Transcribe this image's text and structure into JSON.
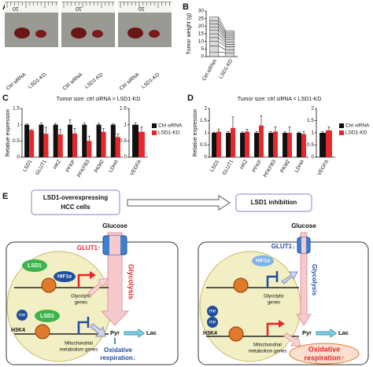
{
  "panel_labels": [
    "A",
    "B",
    "C",
    "D",
    "E"
  ],
  "photo_panel": {
    "photos": [
      {
        "ruler": "10",
        "labels": [
          "Ctrl siRNA",
          "LSD1-KD"
        ]
      },
      {
        "ruler": "10",
        "labels": [
          "Ctrl siRNA",
          "LSD1-KD"
        ]
      },
      {
        "ruler": "10",
        "labels": [
          "Ctrl siRNA",
          "LSD1-KD"
        ]
      }
    ]
  },
  "chart_data": [
    {
      "type": "stacked_bar",
      "categories": [
        "Ctrl siRNA",
        "LSD1-KD"
      ],
      "ylabel": "Tumor weight (g)",
      "ylim": [
        0,
        30
      ],
      "yticks": [
        0,
        5,
        10,
        15,
        20,
        25,
        30
      ],
      "color": "#d9d9d9",
      "series": [
        {
          "values": [
            3,
            2.5
          ]
        },
        {
          "values": [
            4,
            2
          ]
        },
        {
          "values": [
            3,
            2
          ]
        },
        {
          "values": [
            2.5,
            1.5
          ]
        },
        {
          "values": [
            2.5,
            1.5
          ]
        },
        {
          "values": [
            2.5,
            1.5
          ]
        },
        {
          "values": [
            2,
            1.5
          ]
        },
        {
          "values": [
            2,
            1.5
          ]
        },
        {
          "values": [
            2,
            1.5
          ]
        },
        {
          "values": [
            2.5,
            1.5
          ]
        }
      ]
    },
    {
      "type": "bar",
      "title": "Tumor size: ctrl siRNA > LSD1-KD",
      "ylabel": "Relative expression",
      "categories": [
        "LSD1",
        "GLUT1",
        "HK2",
        "PFKP",
        "PFKFB3",
        "PKM2",
        "LDHA"
      ],
      "ylim": [
        0,
        1.5
      ],
      "yticks": [
        0,
        0.5,
        1,
        1.5
      ],
      "series": [
        {
          "name": "Ctrl siRNA",
          "color": "#111111",
          "values": [
            1,
            1,
            1,
            1,
            1,
            1,
            1
          ],
          "errors": [
            0.03,
            0.05,
            0.04,
            0.15,
            0.05,
            0.04,
            0.03
          ]
        },
        {
          "name": "LSD1-KD",
          "color": "#e8262b",
          "values": [
            0.83,
            0.72,
            0.7,
            0.73,
            0.5,
            0.78,
            0.62
          ],
          "errors": [
            0.02,
            0.2,
            0.15,
            0.15,
            0.15,
            0.1,
            0.1
          ]
        }
      ]
    },
    {
      "type": "bar",
      "categories": [
        "VEGFA"
      ],
      "ylim": [
        0,
        1.5
      ],
      "yticks": [
        0,
        0.5,
        1,
        1.5
      ],
      "series": [
        {
          "color": "#111111",
          "values": [
            1
          ],
          "errors": [
            0.05
          ]
        },
        {
          "color": "#e8262b",
          "values": [
            0.78
          ],
          "errors": [
            0.15
          ]
        }
      ]
    },
    {
      "type": "bar",
      "title": "Tumor size: ctrl siRNA < LSD1-KD",
      "ylabel": "Relative expression",
      "categories": [
        "LSD1",
        "GLUT1",
        "HK2",
        "PFKP",
        "PFKFB3",
        "PKM2",
        "LDHA"
      ],
      "ylim": [
        0,
        2
      ],
      "yticks": [
        0,
        0.5,
        1,
        1.5,
        2
      ],
      "series": [
        {
          "name": "Ctrl siRNA",
          "color": "#111111",
          "values": [
            1,
            1,
            1,
            1,
            1,
            1,
            1
          ],
          "errors": [
            0.03,
            0.05,
            0.04,
            0.05,
            0.05,
            0.04,
            0.03
          ]
        },
        {
          "name": "LSD1-KD",
          "color": "#e8262b",
          "values": [
            1.05,
            1.2,
            1.05,
            1.3,
            1.05,
            1.0,
            0.95
          ],
          "errors": [
            0.1,
            0.45,
            0.1,
            0.4,
            0.2,
            0.25,
            0.1
          ]
        }
      ]
    },
    {
      "type": "bar",
      "categories": [
        "VEGFA"
      ],
      "ylim": [
        0,
        2
      ],
      "yticks": [
        0,
        0.5,
        1,
        1.5,
        2
      ],
      "series": [
        {
          "color": "#111111",
          "values": [
            1
          ],
          "errors": [
            0.05
          ]
        },
        {
          "color": "#e8262b",
          "values": [
            1.1
          ],
          "errors": [
            0.15
          ]
        }
      ]
    }
  ],
  "diagram": {
    "left_title": [
      "LSD1-overexpressing",
      "HCC cells"
    ],
    "right_title": "LSD1 inhibition",
    "left": {
      "glucose": "Glucose",
      "glut": "GLUT1↑",
      "glycolysis": "Glycolysis",
      "lsd1_a": "LSD1",
      "hif": "HIF1α",
      "glyco_genes": [
        "Glycolytic",
        "genes"
      ],
      "me": "me",
      "lsd1_b": "LSD1",
      "h3k4": "H3K4",
      "mito_genes": [
        "Mitochondrial",
        "metabolism genes"
      ],
      "pyr": "Pyr",
      "lac": "Lac",
      "oxresp": [
        "Oxidative",
        "respiration↓"
      ]
    },
    "right": {
      "glucose": "Glucose",
      "glut": "GLUT1↓",
      "glycolysis": "Glycolysis",
      "hif": "HIF1α",
      "glyco_genes": [
        "Glycolytic",
        "genes"
      ],
      "me_a": "me",
      "me_b": "me",
      "h3k4": "H3K4",
      "mito_genes": [
        "Mitochondrial",
        "metabolism genes"
      ],
      "pyr": "Pyr",
      "lac": "Lac",
      "oxresp": [
        "Oxidative",
        "respiration↑"
      ]
    }
  }
}
